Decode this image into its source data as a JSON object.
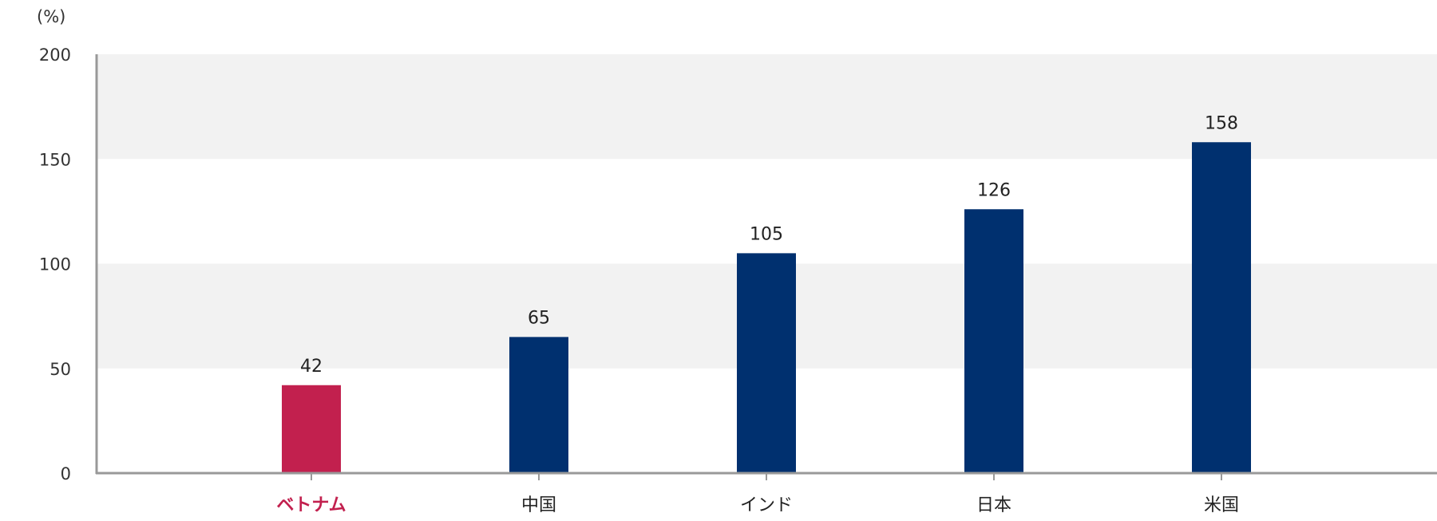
{
  "chart_data": {
    "type": "bar",
    "unit_label": "(%)",
    "categories": [
      "ベトナム",
      "中国",
      "インド",
      "日本",
      "米国"
    ],
    "values": [
      42,
      65,
      105,
      126,
      158
    ],
    "highlight_index": 0,
    "ylim": [
      0,
      200
    ],
    "yticks": [
      0,
      50,
      100,
      150,
      200
    ],
    "grid": "alternating-bands",
    "legend": "none",
    "colors": {
      "highlight": "#c2204e",
      "default": "#00306f",
      "band": "#f2f2f2",
      "axis": "#999999"
    }
  }
}
